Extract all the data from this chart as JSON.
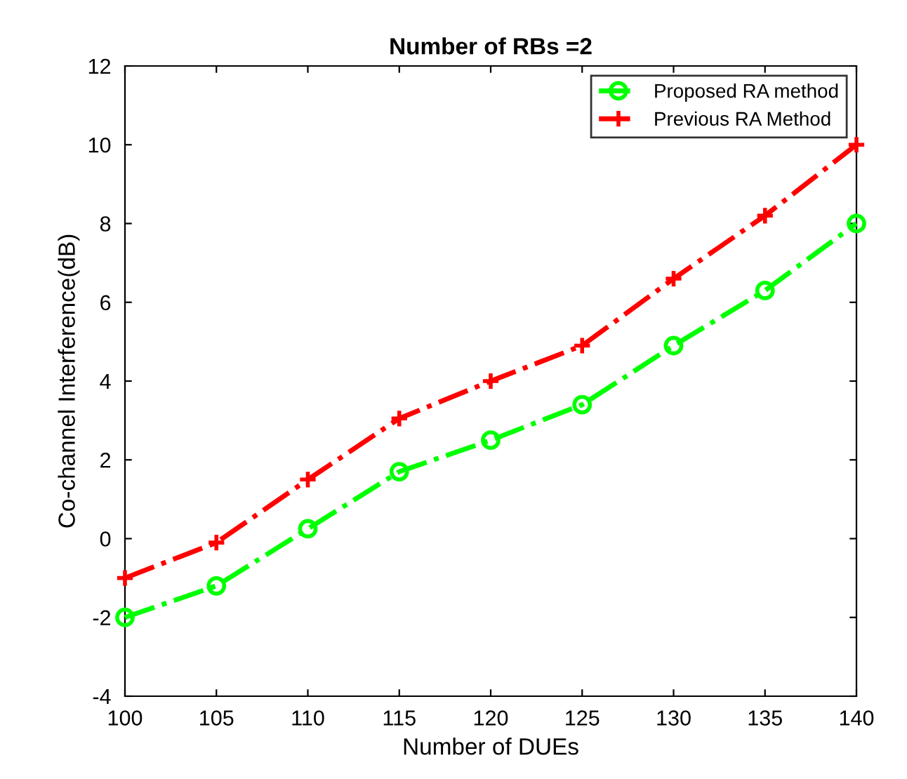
{
  "chart_data": {
    "type": "line",
    "title": "Number of RBs =2",
    "xlabel": "Number of DUEs",
    "ylabel": "Co-channel Interference(dB)",
    "x": [
      100,
      105,
      110,
      115,
      120,
      125,
      130,
      135,
      140
    ],
    "series": [
      {
        "name": "Proposed RA method",
        "color": "#00ff00",
        "marker": "circle",
        "values": [
          -2.0,
          -1.2,
          0.25,
          1.7,
          2.5,
          3.4,
          4.9,
          6.3,
          8.0
        ]
      },
      {
        "name": "Previous RA Method",
        "color": "#ff0000",
        "marker": "cross",
        "values": [
          -1.0,
          -0.1,
          1.5,
          3.05,
          4.0,
          4.9,
          6.6,
          8.2,
          10.0
        ]
      }
    ],
    "line_style": "dashdot",
    "xlim": [
      100,
      140
    ],
    "xticks": [
      100,
      105,
      110,
      115,
      120,
      125,
      130,
      135,
      140
    ],
    "ylim": [
      -4,
      12
    ],
    "yticks": [
      -4,
      -2,
      0,
      2,
      4,
      6,
      8,
      10,
      12
    ],
    "grid": false,
    "legend": "top right"
  }
}
